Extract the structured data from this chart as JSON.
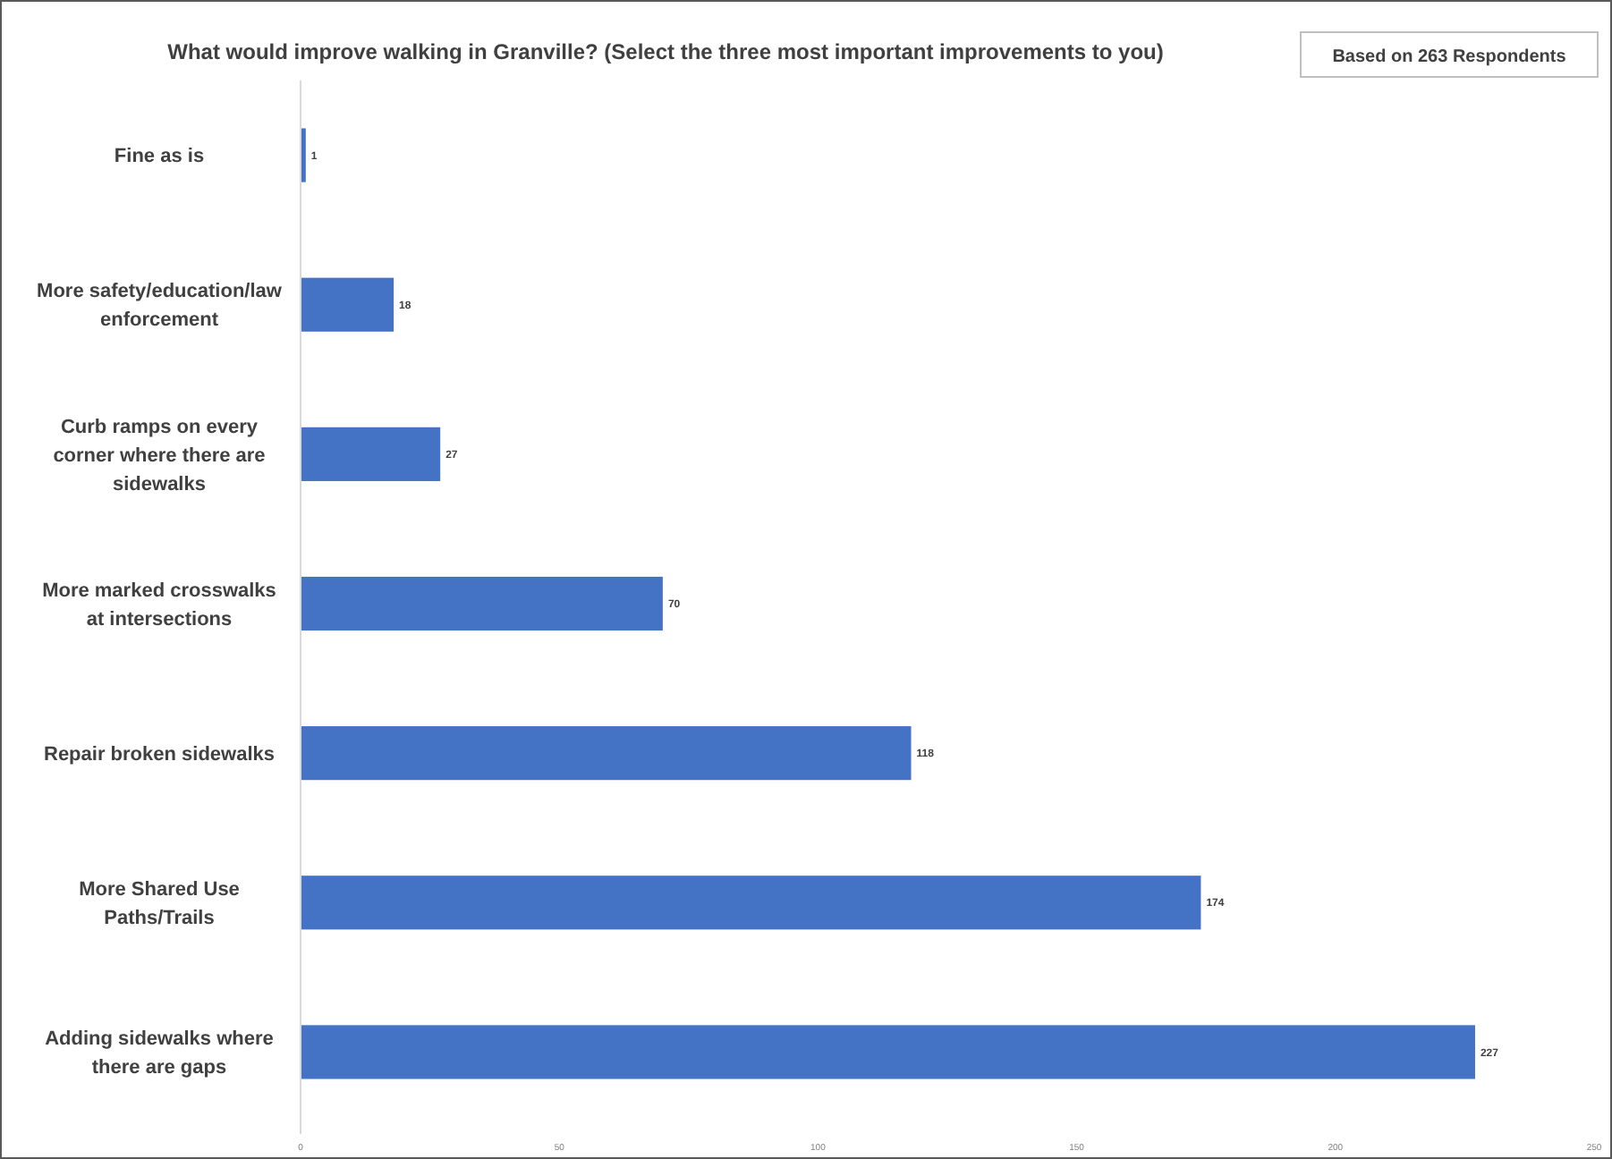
{
  "chart_data": {
    "type": "bar",
    "orientation": "horizontal",
    "title": "What would improve walking in Granville? (Select the three most important improvements to you)",
    "categories": [
      "Fine as is",
      "More safety/education/law enforcement",
      "Curb ramps on every corner where there are sidewalks",
      "More marked crosswalks at intersections",
      "Repair broken sidewalks",
      "More Shared Use Paths/Trails",
      "Adding sidewalks where there are gaps"
    ],
    "values": [
      1,
      18,
      27,
      70,
      118,
      174,
      227
    ],
    "color": "#4472c4",
    "xlim": [
      0,
      250
    ],
    "xticks": [
      0,
      50,
      100,
      150,
      200,
      250
    ],
    "data_labels": true,
    "grid": false,
    "annotations": [
      "Based on 263 Respondents"
    ]
  }
}
